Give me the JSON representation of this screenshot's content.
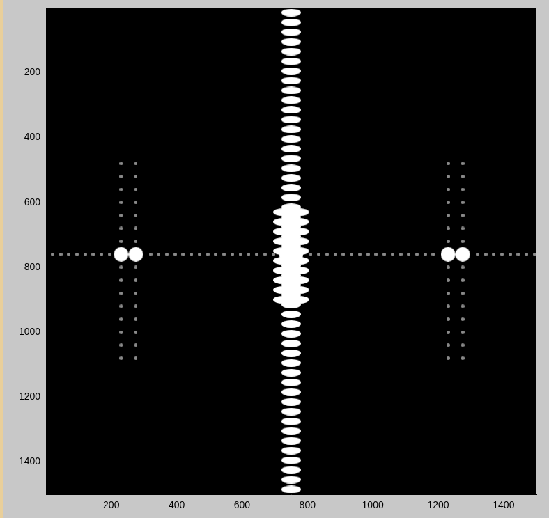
{
  "chart_data": {
    "type": "scatter",
    "xlim": [
      0.5,
      1500.5
    ],
    "xticks": [
      200,
      400,
      600,
      800,
      1000,
      1200,
      1400
    ],
    "ylim": [
      1500.5,
      0.5
    ],
    "yticks": [
      200,
      400,
      600,
      800,
      1000,
      1200,
      1400
    ],
    "grid": false,
    "series": [
      {
        "color": "#ffffff",
        "marker": "ellipse",
        "points": [
          [
            750,
            15
          ],
          [
            750,
            45
          ],
          [
            750,
            75
          ],
          [
            750,
            105
          ],
          [
            750,
            135
          ],
          [
            750,
            165
          ],
          [
            750,
            195
          ],
          [
            750,
            225
          ],
          [
            750,
            255
          ],
          [
            750,
            285
          ],
          [
            750,
            315
          ],
          [
            750,
            345
          ],
          [
            750,
            375
          ],
          [
            750,
            405
          ],
          [
            750,
            435
          ],
          [
            750,
            465
          ],
          [
            750,
            495
          ],
          [
            750,
            525
          ],
          [
            750,
            555
          ],
          [
            750,
            585
          ],
          [
            750,
            615
          ],
          [
            750,
            645
          ],
          [
            750,
            675
          ],
          [
            750,
            705
          ],
          [
            750,
            735
          ],
          [
            750,
            765
          ],
          [
            750,
            795
          ],
          [
            750,
            825
          ],
          [
            750,
            855
          ],
          [
            750,
            885
          ],
          [
            750,
            915
          ],
          [
            750,
            945
          ],
          [
            750,
            975
          ],
          [
            750,
            1005
          ],
          [
            750,
            1035
          ],
          [
            750,
            1065
          ],
          [
            750,
            1095
          ],
          [
            750,
            1125
          ],
          [
            750,
            1155
          ],
          [
            750,
            1185
          ],
          [
            750,
            1215
          ],
          [
            750,
            1245
          ],
          [
            750,
            1275
          ],
          [
            750,
            1305
          ],
          [
            750,
            1335
          ],
          [
            750,
            1365
          ],
          [
            750,
            1395
          ],
          [
            750,
            1425
          ],
          [
            750,
            1455
          ],
          [
            750,
            1485
          ],
          [
            725,
            630
          ],
          [
            725,
            660
          ],
          [
            725,
            690
          ],
          [
            725,
            720
          ],
          [
            725,
            750
          ],
          [
            725,
            780
          ],
          [
            725,
            810
          ],
          [
            725,
            840
          ],
          [
            725,
            870
          ],
          [
            725,
            900
          ],
          [
            775,
            630
          ],
          [
            775,
            660
          ],
          [
            775,
            690
          ],
          [
            775,
            720
          ],
          [
            775,
            750
          ],
          [
            775,
            780
          ],
          [
            775,
            810
          ],
          [
            775,
            840
          ],
          [
            775,
            870
          ],
          [
            775,
            900
          ]
        ]
      },
      {
        "color": "#ffffff",
        "marker": "circle",
        "points": [
          [
            230,
            760
          ],
          [
            275,
            760
          ],
          [
            1230,
            760
          ],
          [
            1275,
            760
          ],
          [
            735,
            760
          ],
          [
            765,
            760
          ]
        ]
      },
      {
        "color": "#8a8a8a",
        "marker": "dot",
        "points": [
          [
            20,
            760
          ],
          [
            45,
            760
          ],
          [
            70,
            760
          ],
          [
            95,
            760
          ],
          [
            120,
            760
          ],
          [
            145,
            760
          ],
          [
            170,
            760
          ],
          [
            195,
            760
          ],
          [
            320,
            760
          ],
          [
            345,
            760
          ],
          [
            370,
            760
          ],
          [
            395,
            760
          ],
          [
            420,
            760
          ],
          [
            445,
            760
          ],
          [
            470,
            760
          ],
          [
            495,
            760
          ],
          [
            520,
            760
          ],
          [
            545,
            760
          ],
          [
            570,
            760
          ],
          [
            595,
            760
          ],
          [
            620,
            760
          ],
          [
            645,
            760
          ],
          [
            670,
            760
          ],
          [
            695,
            760
          ],
          [
            810,
            760
          ],
          [
            835,
            760
          ],
          [
            860,
            760
          ],
          [
            885,
            760
          ],
          [
            910,
            760
          ],
          [
            935,
            760
          ],
          [
            960,
            760
          ],
          [
            985,
            760
          ],
          [
            1010,
            760
          ],
          [
            1035,
            760
          ],
          [
            1060,
            760
          ],
          [
            1085,
            760
          ],
          [
            1110,
            760
          ],
          [
            1135,
            760
          ],
          [
            1160,
            760
          ],
          [
            1185,
            760
          ],
          [
            1320,
            760
          ],
          [
            1345,
            760
          ],
          [
            1370,
            760
          ],
          [
            1395,
            760
          ],
          [
            1420,
            760
          ],
          [
            1445,
            760
          ],
          [
            1470,
            760
          ],
          [
            1495,
            760
          ],
          [
            230,
            480
          ],
          [
            230,
            520
          ],
          [
            230,
            560
          ],
          [
            230,
            600
          ],
          [
            230,
            640
          ],
          [
            230,
            680
          ],
          [
            230,
            720
          ],
          [
            230,
            800
          ],
          [
            230,
            840
          ],
          [
            230,
            880
          ],
          [
            230,
            920
          ],
          [
            230,
            960
          ],
          [
            230,
            1000
          ],
          [
            230,
            1040
          ],
          [
            230,
            1080
          ],
          [
            275,
            480
          ],
          [
            275,
            520
          ],
          [
            275,
            560
          ],
          [
            275,
            600
          ],
          [
            275,
            640
          ],
          [
            275,
            680
          ],
          [
            275,
            720
          ],
          [
            275,
            800
          ],
          [
            275,
            840
          ],
          [
            275,
            880
          ],
          [
            275,
            920
          ],
          [
            275,
            960
          ],
          [
            275,
            1000
          ],
          [
            275,
            1040
          ],
          [
            275,
            1080
          ],
          [
            1230,
            480
          ],
          [
            1230,
            520
          ],
          [
            1230,
            560
          ],
          [
            1230,
            600
          ],
          [
            1230,
            640
          ],
          [
            1230,
            680
          ],
          [
            1230,
            720
          ],
          [
            1230,
            800
          ],
          [
            1230,
            840
          ],
          [
            1230,
            880
          ],
          [
            1230,
            920
          ],
          [
            1230,
            960
          ],
          [
            1230,
            1000
          ],
          [
            1230,
            1040
          ],
          [
            1230,
            1080
          ],
          [
            1275,
            480
          ],
          [
            1275,
            520
          ],
          [
            1275,
            560
          ],
          [
            1275,
            600
          ],
          [
            1275,
            640
          ],
          [
            1275,
            680
          ],
          [
            1275,
            720
          ],
          [
            1275,
            800
          ],
          [
            1275,
            840
          ],
          [
            1275,
            880
          ],
          [
            1275,
            920
          ],
          [
            1275,
            960
          ],
          [
            1275,
            1000
          ],
          [
            1275,
            1040
          ],
          [
            1275,
            1080
          ]
        ]
      }
    ]
  }
}
